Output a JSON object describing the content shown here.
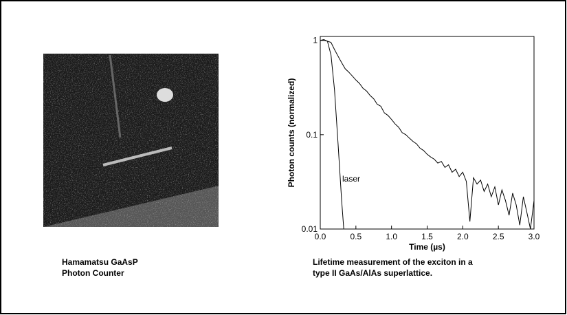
{
  "photo_caption": [
    "Hamamatsu GaAsP",
    "Photon Counter"
  ],
  "chart_caption": [
    "Lifetime measurement of the exciton in a",
    "type II GaAs/AlAs superlattice."
  ],
  "chart_data": {
    "type": "line",
    "xlabel": "Time (µs)",
    "ylabel": "Photon counts (normalized)",
    "annotation": "laser",
    "xlim": [
      0,
      3
    ],
    "xticks": [
      {
        "value": 0,
        "label": "0.0"
      },
      0.5,
      {
        "value": 1,
        "label": "1.0"
      },
      1.5,
      {
        "value": 2,
        "label": "2.0"
      },
      2.5,
      {
        "value": 3,
        "label": "3.0"
      }
    ],
    "ylim": [
      0.01,
      1.1
    ],
    "yticks": [
      0.01,
      0.1,
      1
    ],
    "log_y": true,
    "grid": false,
    "series": [
      {
        "color": "#000000",
        "x": [
          0,
          0.05,
          0.1,
          0.15,
          0.2,
          0.25,
          0.3,
          0.35,
          0.4,
          0.45,
          0.5,
          0.55,
          0.6,
          0.65,
          0.7,
          0.75,
          0.8,
          0.85,
          0.9,
          0.95,
          1.0,
          1.05,
          1.1,
          1.15,
          1.2,
          1.25,
          1.3,
          1.35,
          1.4,
          1.45,
          1.5,
          1.55,
          1.6,
          1.65,
          1.7,
          1.75,
          1.8,
          1.85,
          1.9,
          1.95,
          2.0,
          2.05,
          2.1,
          2.15,
          2.2,
          2.25,
          2.3,
          2.35,
          2.4,
          2.45,
          2.5,
          2.55,
          2.6,
          2.65,
          2.7,
          2.75,
          2.8,
          2.85,
          2.9,
          2.95,
          3.0
        ],
        "values": [
          1.0,
          1.02,
          0.98,
          0.95,
          0.8,
          0.68,
          0.58,
          0.5,
          0.46,
          0.42,
          0.38,
          0.35,
          0.31,
          0.29,
          0.26,
          0.24,
          0.21,
          0.2,
          0.17,
          0.16,
          0.145,
          0.13,
          0.12,
          0.105,
          0.1,
          0.092,
          0.085,
          0.08,
          0.072,
          0.068,
          0.062,
          0.058,
          0.055,
          0.05,
          0.052,
          0.045,
          0.048,
          0.04,
          0.043,
          0.036,
          0.04,
          0.032,
          0.012,
          0.035,
          0.03,
          0.033,
          0.025,
          0.03,
          0.022,
          0.028,
          0.018,
          0.026,
          0.02,
          0.014,
          0.024,
          0.018,
          0.011,
          0.022,
          0.015,
          0.01,
          0.02
        ]
      },
      {
        "color": "#000000",
        "x": [
          0,
          0.05,
          0.1,
          0.15,
          0.2,
          0.25,
          0.3,
          0.33
        ],
        "values": [
          1,
          1,
          0.98,
          0.7,
          0.3,
          0.08,
          0.02,
          0.01
        ]
      }
    ]
  }
}
